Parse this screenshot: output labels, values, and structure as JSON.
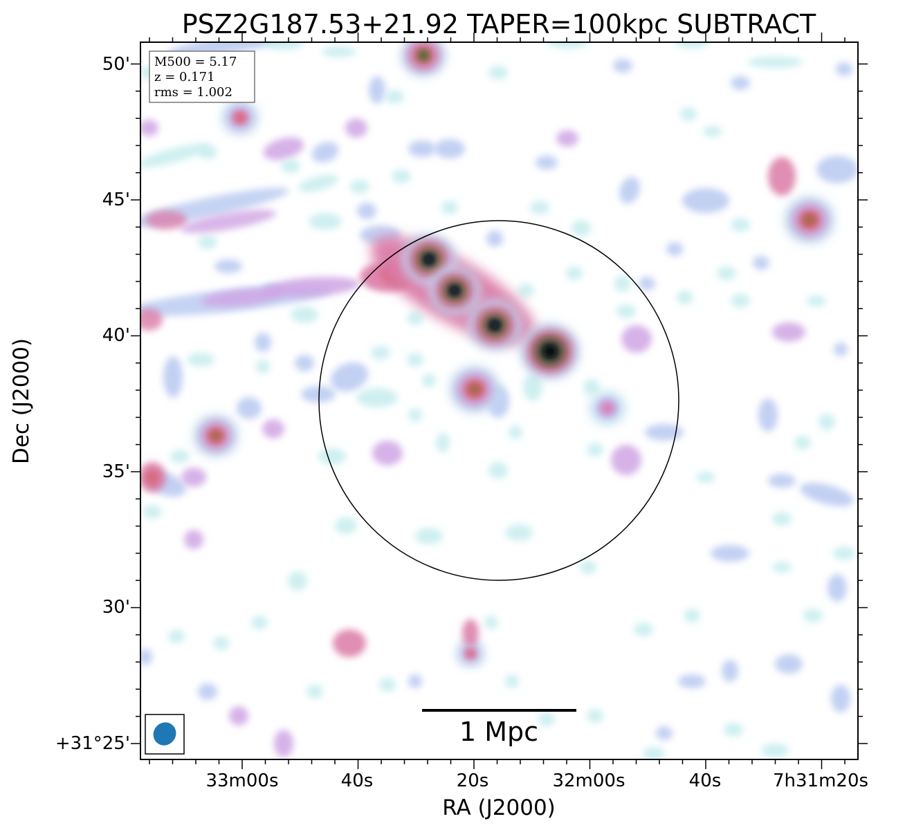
{
  "chart_data": {
    "type": "heatmap",
    "title": "PSZ2G187.53+21.92 TAPER=100kpc SUBTRACT",
    "xlabel": "RA (J2000)",
    "ylabel": "Dec (J2000)",
    "x_tick_labels": [
      "33m00s",
      "40s",
      "20s",
      "32m00s",
      "40s",
      "7h31m20s"
    ],
    "y_tick_labels": [
      "+31°25'",
      "30'",
      "35'",
      "40'",
      "45'",
      "50'"
    ],
    "info_box": [
      "M500 = 5.17",
      "z = 0.171",
      "rms = 1.002"
    ],
    "scale_bar_label": "1 Mpc",
    "colormap": [
      "#ffffff",
      "#c6ecef",
      "#b7c8f0",
      "#cfa4e4",
      "#db7aa6",
      "#d5626e",
      "#9a6a48",
      "#2e6b3a",
      "#16243f",
      "#070712"
    ],
    "circle_color": "#000000",
    "beam_color": "#1f77b4"
  }
}
